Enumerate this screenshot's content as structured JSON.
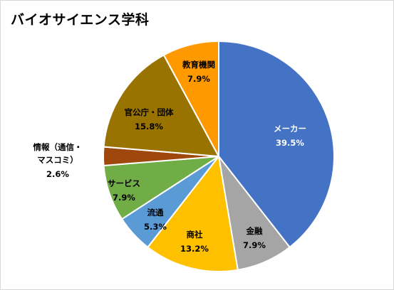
{
  "chart_data": {
    "type": "pie",
    "title": "バイオサイエンス学科",
    "start": "top",
    "direction": "clockwise",
    "slices": [
      {
        "label": "メーカー",
        "value": 39.5,
        "display": "39.5%",
        "color": "#4472c4",
        "label_color": "#ffffff"
      },
      {
        "label": "金融",
        "value": 7.9,
        "display": "7.9%",
        "color": "#a5a5a5",
        "label_color": "#000000"
      },
      {
        "label": "商社",
        "value": 13.2,
        "display": "13.2%",
        "color": "#ffc000",
        "label_color": "#000000"
      },
      {
        "label": "流通",
        "value": 5.3,
        "display": "5.3%",
        "color": "#5b9bd5",
        "label_color": "#000000"
      },
      {
        "label": "サービス",
        "value": 7.9,
        "display": "7.9%",
        "color": "#70ad47",
        "label_color": "#000000"
      },
      {
        "label": "情報（通信・マスコミ）",
        "label_lines": [
          "情報（通信・",
          "マスコミ）"
        ],
        "value": 2.6,
        "display": "2.6%",
        "color": "#9e480e",
        "label_color": "#000000"
      },
      {
        "label": "官公庁・団体",
        "value": 15.8,
        "display": "15.8%",
        "color": "#997300",
        "label_color": "#000000"
      },
      {
        "label": "教育機関",
        "value": 7.9,
        "display": "7.9%",
        "color": "#ff9900",
        "label_color": "#000000"
      }
    ]
  }
}
